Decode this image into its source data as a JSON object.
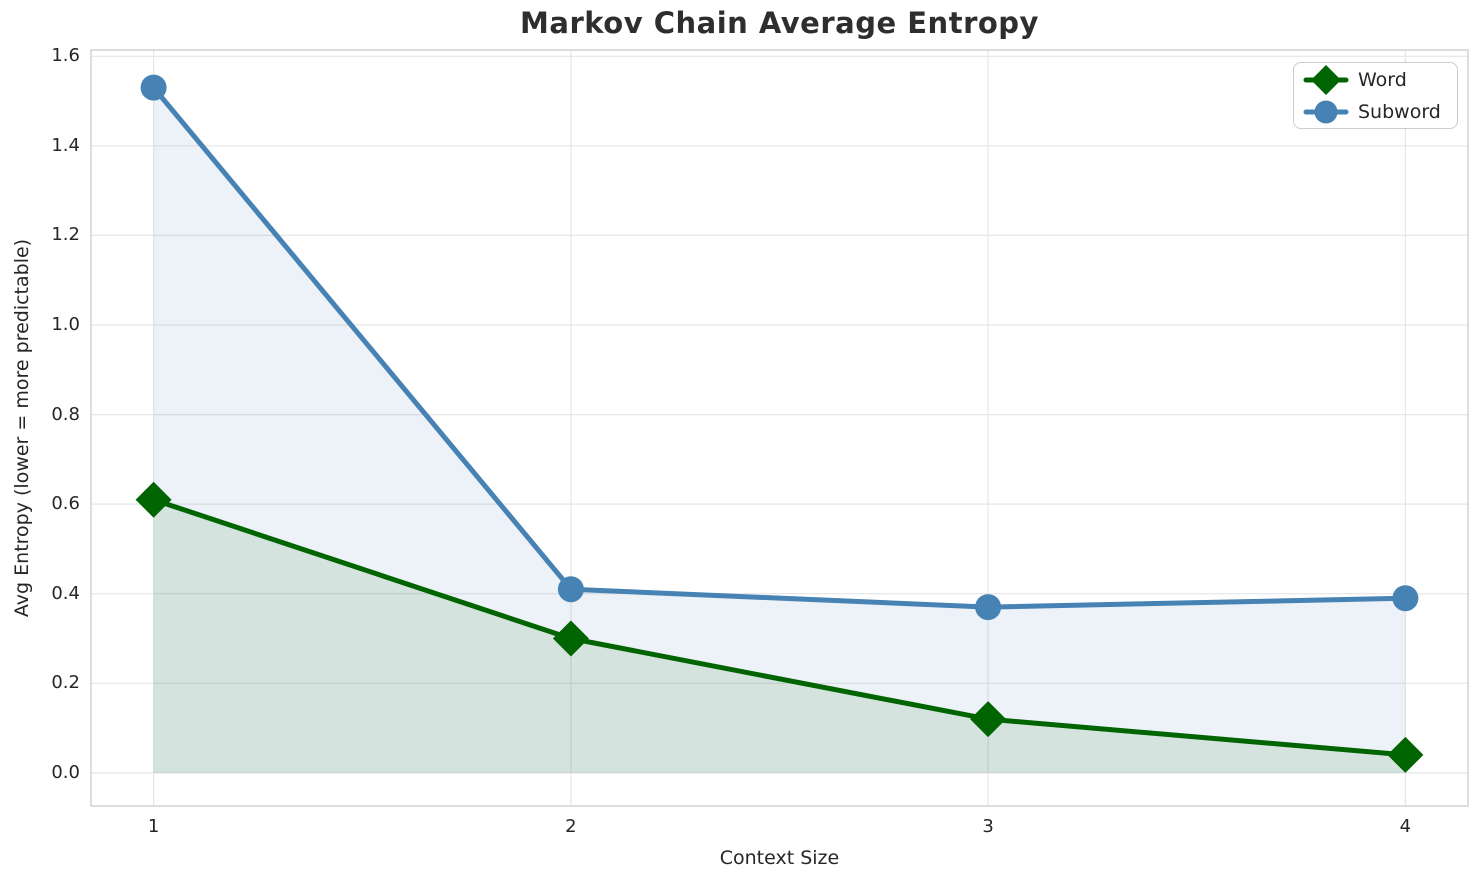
{
  "chart_data": {
    "type": "line",
    "title": "Markov Chain Average Entropy",
    "xlabel": "Context Size",
    "ylabel": "Avg Entropy (lower = more predictable)",
    "x": [
      1,
      2,
      3,
      4
    ],
    "xticks": [
      1,
      2,
      3,
      4
    ],
    "xtick_labels": [
      "1",
      "2",
      "3",
      "4"
    ],
    "yticks": [
      0.0,
      0.2,
      0.4,
      0.6,
      0.8,
      1.0,
      1.2,
      1.4,
      1.6
    ],
    "xlim": [
      0.85,
      4.15
    ],
    "ylim": [
      -0.074,
      1.614
    ],
    "grid": true,
    "legend_position": "upper right",
    "fill_to_zero": true,
    "fill_opacity": 0.1,
    "series": [
      {
        "name": "Word",
        "marker": "diamond",
        "color": "#006400",
        "values": [
          0.61,
          0.3,
          0.12,
          0.04
        ]
      },
      {
        "name": "Subword",
        "marker": "circle",
        "color": "#4682B4",
        "values": [
          1.53,
          0.41,
          0.37,
          0.39
        ]
      }
    ],
    "colors": {
      "grid": "#e6e6e6",
      "spine": "#d2d2d2",
      "text": "#262626",
      "title": "#2e2e2e"
    }
  }
}
